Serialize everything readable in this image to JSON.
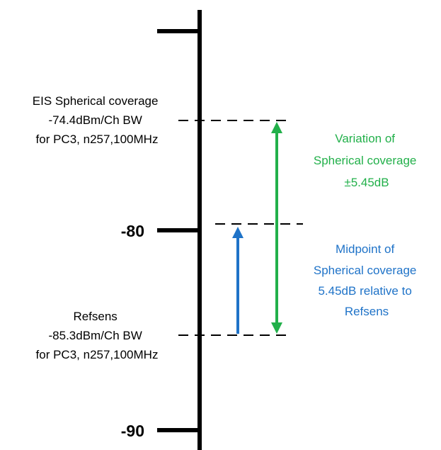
{
  "colors": {
    "axis": "#000000",
    "text": "#000000",
    "variation": "#22b04a",
    "midpoint": "#1f73c8"
  },
  "axis": {
    "tick_labels": [
      "-80",
      "-90"
    ]
  },
  "eis_label": {
    "lines": [
      "EIS Spherical coverage",
      "-74.4dBm/Ch BW",
      "for PC3, n257,100MHz"
    ]
  },
  "refsens_label": {
    "lines": [
      "Refsens",
      "-85.3dBm/Ch BW",
      "for PC3, n257,100MHz"
    ]
  },
  "variation_label": {
    "lines": [
      "Variation of",
      "Spherical coverage",
      "±5.45dB"
    ]
  },
  "midpoint_label": {
    "lines": [
      "Midpoint of",
      "Spherical coverage",
      "5.45dB relative to",
      "Refsens"
    ]
  }
}
